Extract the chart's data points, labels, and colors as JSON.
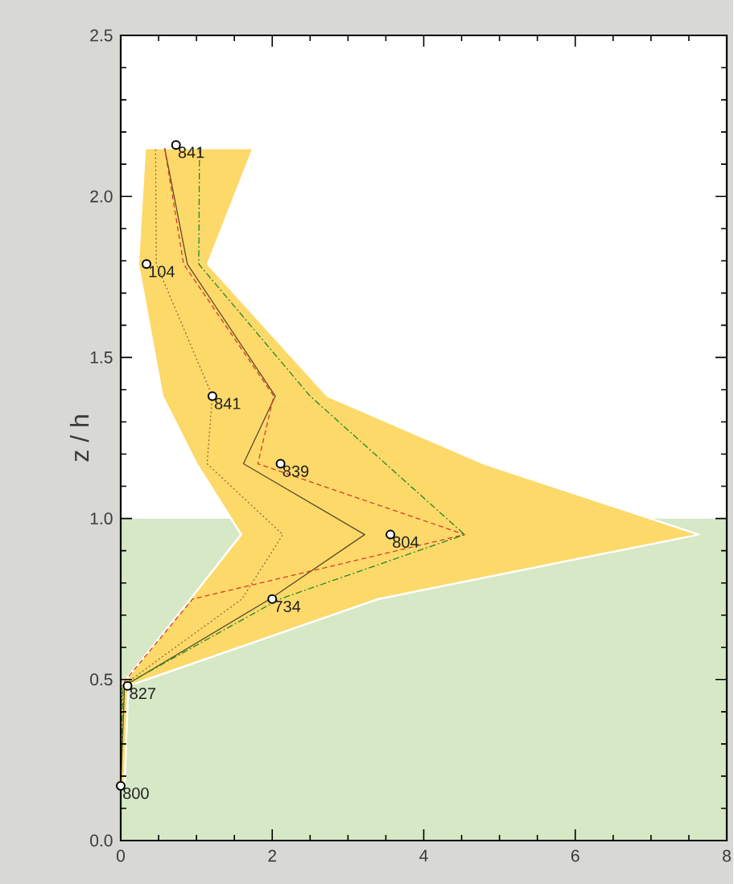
{
  "chart_data": {
    "type": "line",
    "ylabel": "z / h",
    "xlim": [
      0,
      8
    ],
    "ylim": [
      0,
      2.5
    ],
    "xticks": [
      0,
      2,
      4,
      6,
      8
    ],
    "yticks": [
      {
        "value": 0,
        "label": "0.0"
      },
      {
        "value": 0.5,
        "label": "0.5"
      },
      {
        "value": 1.0,
        "label": "1.0"
      },
      {
        "value": 1.5,
        "label": "1.5"
      },
      {
        "value": 2.0,
        "label": "2.0"
      },
      {
        "value": 2.5,
        "label": "2.5"
      }
    ],
    "bands": [
      {
        "axis": "y",
        "from": 0,
        "to": 1.0,
        "color": "#d6e8c6"
      }
    ],
    "series": [
      {
        "type": "area",
        "color": "#fdd96a",
        "x": [
          0,
          0,
          0.92,
          1.59,
          1.0,
          0.55,
          0.23,
          0.32,
          1.75,
          1.15,
          2.73,
          4.8,
          7.63,
          3.4,
          0.1,
          0.05
        ],
        "values": [
          0.17,
          0.48,
          0.75,
          0.95,
          1.17,
          1.38,
          1.79,
          2.15,
          2.15,
          1.79,
          1.38,
          1.17,
          0.95,
          0.75,
          0.48,
          0.17
        ]
      },
      {
        "color": "#5a4a2a",
        "line_style": "solid",
        "x": [
          0,
          0.05,
          1.97,
          3.22,
          1.62,
          2.04,
          0.88,
          0.58
        ],
        "values": [
          0.17,
          0.48,
          0.75,
          0.95,
          1.17,
          1.38,
          1.79,
          2.15
        ]
      },
      {
        "color": "#d63a2a",
        "line_style": "dashed",
        "x": [
          0,
          0,
          0.95,
          4.54,
          1.81,
          2.02,
          0.83,
          0.58
        ],
        "values": [
          0.17,
          0.48,
          0.75,
          0.95,
          1.17,
          1.38,
          1.79,
          2.15
        ]
      },
      {
        "color": "#1f8a2a",
        "line_style": "dashdot",
        "x": [
          0,
          0.03,
          2.1,
          4.54,
          2.5,
          1.03,
          1.04
        ],
        "values": [
          0.17,
          0.48,
          0.75,
          0.95,
          1.38,
          1.79,
          2.15
        ]
      },
      {
        "color": "#8a6a3a",
        "line_style": "dotted",
        "x": [
          0,
          0.02,
          1.6,
          2.14,
          1.14,
          1.21,
          0.47,
          0.46
        ],
        "values": [
          0.17,
          0.48,
          0.75,
          0.95,
          1.17,
          1.38,
          1.79,
          2.15
        ]
      },
      {
        "type": "scatter",
        "color": "#ffffff",
        "marker": "circle",
        "x": [
          0,
          0.09,
          2.0,
          3.56,
          2.11,
          1.21,
          0.34,
          0.73
        ],
        "values": [
          0.17,
          0.48,
          0.75,
          0.95,
          1.17,
          1.38,
          1.79,
          2.16
        ]
      }
    ],
    "annotations": [
      {
        "text": "800",
        "x": 0,
        "y": 0.17
      },
      {
        "text": "827",
        "x": 0.09,
        "y": 0.48
      },
      {
        "text": "734",
        "x": 2.0,
        "y": 0.75
      },
      {
        "text": "804",
        "x": 3.56,
        "y": 0.95
      },
      {
        "text": "839",
        "x": 2.11,
        "y": 1.17
      },
      {
        "text": "841",
        "x": 1.21,
        "y": 1.38
      },
      {
        "text": "104",
        "x": 0.34,
        "y": 1.79
      },
      {
        "text": "841",
        "x": 0.73,
        "y": 2.16
      }
    ]
  }
}
